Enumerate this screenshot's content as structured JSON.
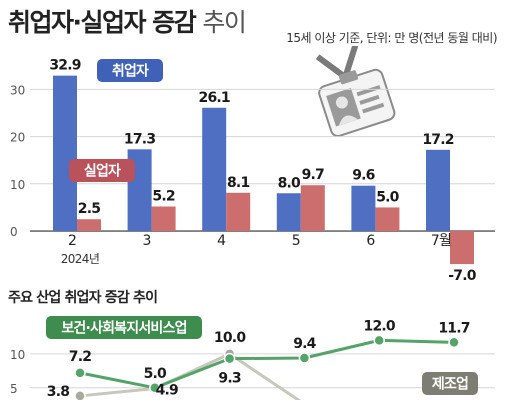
{
  "header": {
    "title": "취업자·실업자 증감",
    "subtitle": "추이",
    "basis": "15세 이상 기준, 단위: 만 명(전년 동월 대비)"
  },
  "section2": {
    "title": "주요 산업 취업자 증감 추이"
  },
  "colors": {
    "employed": "#4f6fc3",
    "unemployed": "#cd6e6e",
    "employed_label_bg": "#3f62b8",
    "unemployed_label_bg": "#b9525a",
    "health_line": "#54a368",
    "health_label_bg": "#3f8c4f",
    "manufacturing_line": "#c7c7bc",
    "manufacturing_label_bg": "#7d7d73"
  },
  "icons": [
    "id-badge-icon"
  ],
  "chart_data": [
    {
      "type": "bar",
      "categories": [
        "2",
        "3",
        "4",
        "5",
        "6",
        "7월"
      ],
      "year_label": "2024년",
      "series": [
        {
          "name": "취업자",
          "values": [
            32.9,
            17.3,
            26.1,
            8.0,
            9.6,
            17.2
          ]
        },
        {
          "name": "실업자",
          "values": [
            2.5,
            5.2,
            8.1,
            9.7,
            5.0,
            -7.0
          ]
        }
      ],
      "value_labels": {
        "취업자": [
          "32.9",
          "17.3",
          "26.1",
          "8.0",
          "9.6",
          "17.2"
        ],
        "실업자": [
          "2.5",
          "5.2",
          "8.1",
          "9.7",
          "5.0",
          "-7.0"
        ]
      },
      "yticks": [
        "30",
        "20",
        "10",
        "0"
      ],
      "ylim": [
        -11,
        36
      ],
      "grid": true
    },
    {
      "type": "line",
      "x_count": 6,
      "series": [
        {
          "name": "보건·사회복지서비스업",
          "values": [
            7.2,
            5.0,
            9.3,
            9.4,
            12.0,
            11.7
          ],
          "labels": [
            "7.2",
            "5.0",
            "9.3",
            "9.4",
            "12.0",
            "11.7"
          ]
        },
        {
          "name": "제조업",
          "values": [
            3.8,
            4.9,
            10.0,
            null,
            null,
            null
          ],
          "labels": [
            "3.8",
            "4.9",
            "10.0"
          ]
        }
      ],
      "yticks": [
        "10",
        "5"
      ],
      "ylim": [
        3.2,
        15.3
      ],
      "grid": true
    }
  ]
}
